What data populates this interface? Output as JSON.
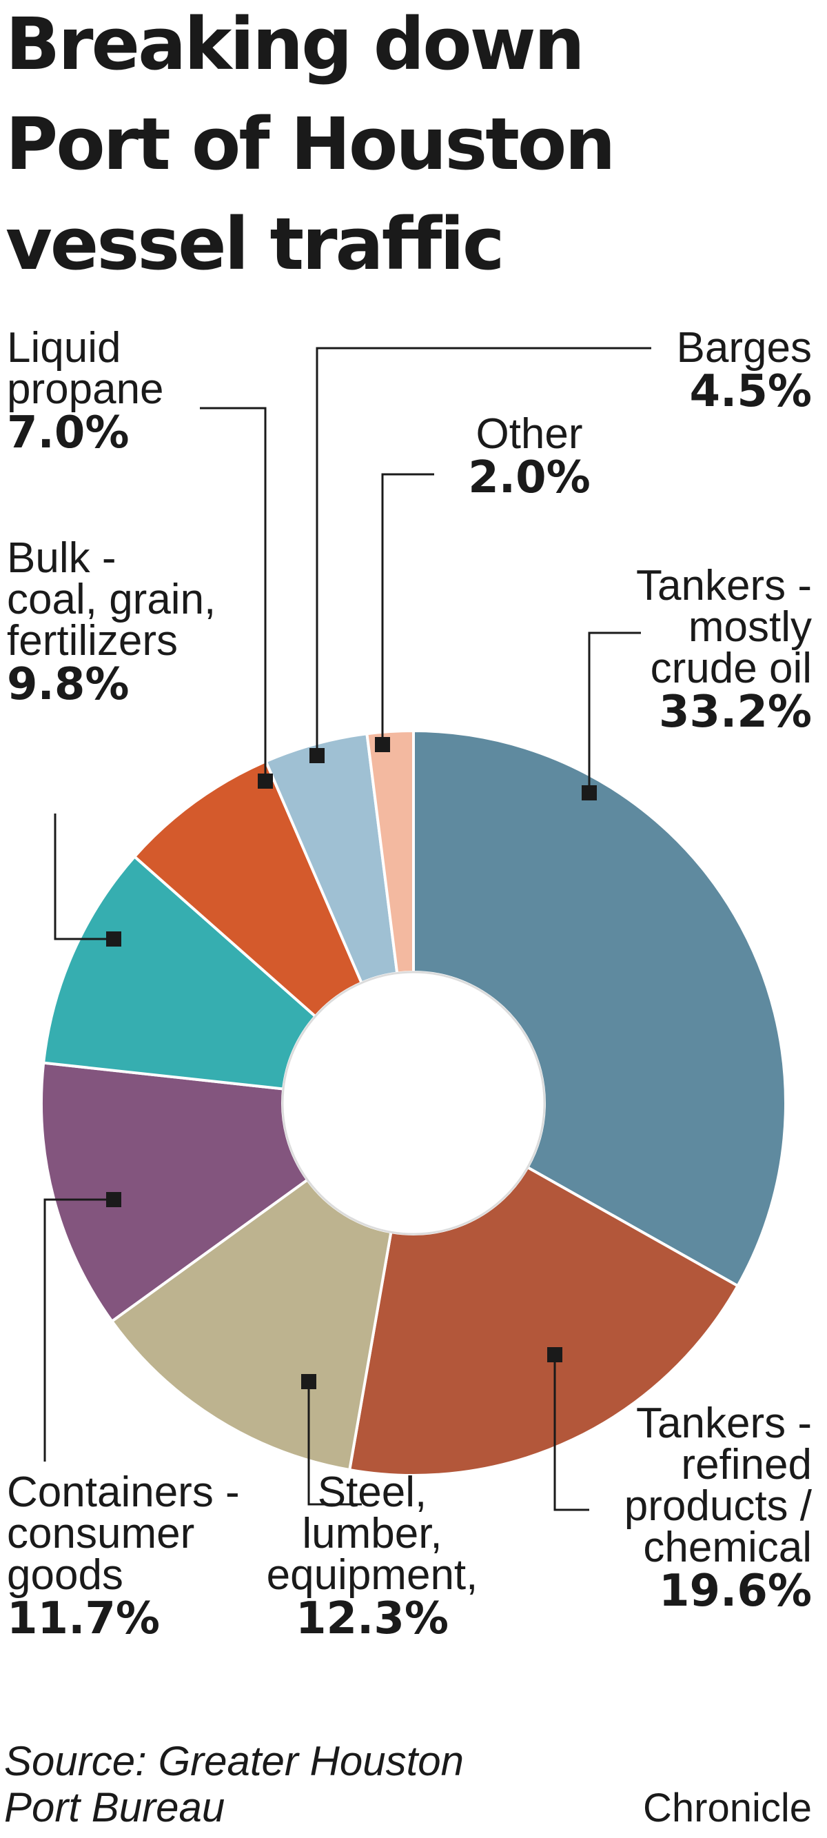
{
  "title_lines": [
    "Breaking down",
    "Port of Houston",
    "vessel traffic"
  ],
  "chart_data": {
    "type": "donut",
    "title": "Breaking down Port of Houston vessel traffic",
    "unit": "%",
    "slices": [
      {
        "label_lines": [
          "Tankers -",
          "mostly",
          "crude oil"
        ],
        "value": 33.2,
        "value_label": "33.2%",
        "color": "#5f8a9f"
      },
      {
        "label_lines": [
          "Tankers -",
          "refined",
          "products /",
          "chemical"
        ],
        "value": 19.6,
        "value_label": "19.6%",
        "color": "#b3573a"
      },
      {
        "label_lines": [
          "Steel,",
          "lumber,",
          "equipment,"
        ],
        "value": 12.3,
        "value_label": "12.3%",
        "color": "#bdb38f"
      },
      {
        "label_lines": [
          "Containers -",
          "consumer",
          "goods"
        ],
        "value": 11.7,
        "value_label": "11.7%",
        "color": "#83557e"
      },
      {
        "label_lines": [
          "Bulk -",
          "coal, grain,",
          "fertilizers"
        ],
        "value": 9.8,
        "value_label": "9.8%",
        "color": "#36aeb0"
      },
      {
        "label_lines": [
          "Liquid",
          "propane"
        ],
        "value": 7.0,
        "value_label": "7.0%",
        "color": "#d45a2c"
      },
      {
        "label_lines": [
          "Barges"
        ],
        "value": 4.5,
        "value_label": "4.5%",
        "color": "#9fc0d3"
      },
      {
        "label_lines": [
          "Other"
        ],
        "value": 2.0,
        "value_label": "2.0%",
        "color": "#f3b9a0"
      }
    ]
  },
  "source_lines": [
    "Source: Greater Houston",
    "Port Bureau"
  ],
  "credit": "Chronicle"
}
